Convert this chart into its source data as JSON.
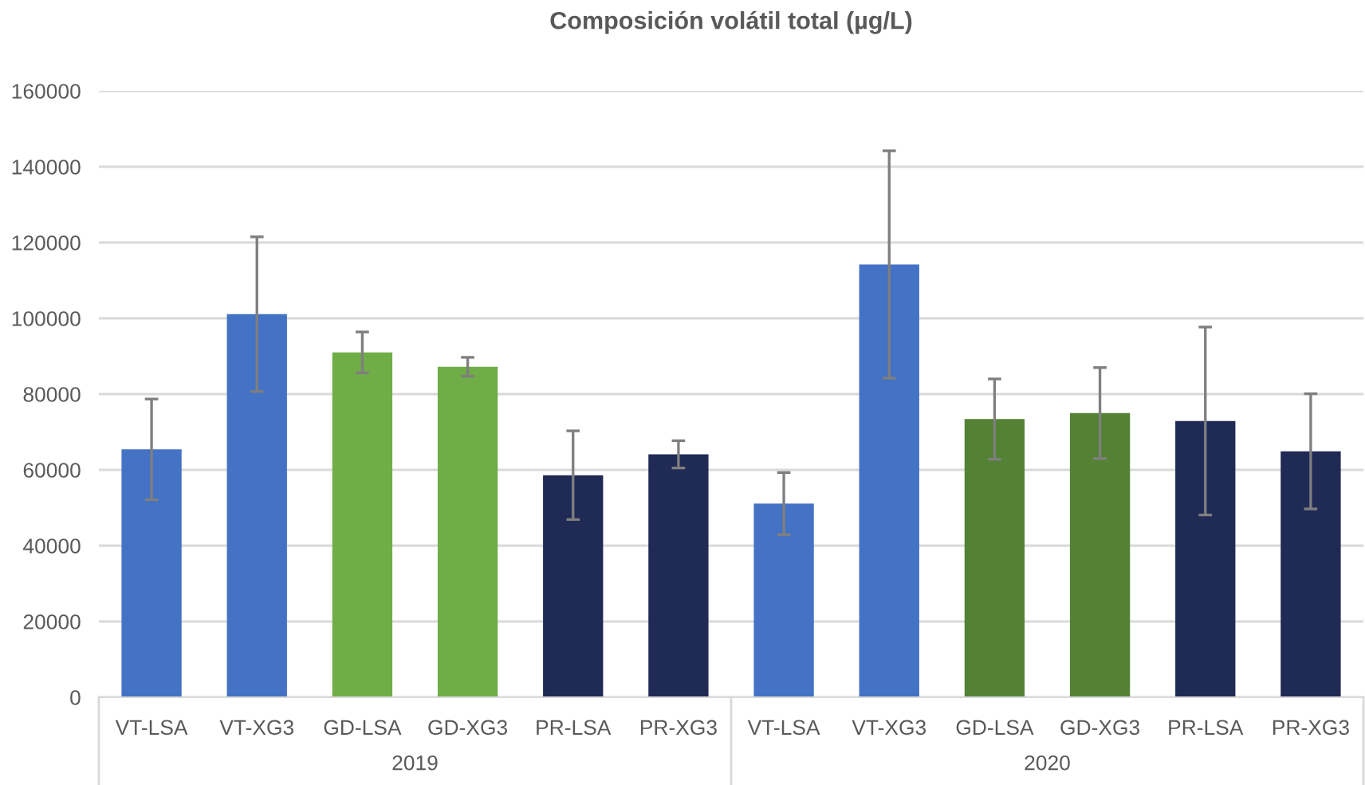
{
  "chart_data": {
    "type": "bar",
    "title": "Composición volátil total (µg/L)",
    "categories": [
      "VT-LSA",
      "VT-XG3",
      "GD-LSA",
      "GD-XG3",
      "PR-LSA",
      "PR-XG3",
      "VT-LSA",
      "VT-XG3",
      "GD-LSA",
      "GD-XG3",
      "PR-LSA",
      "PR-XG3"
    ],
    "values": [
      65400,
      101100,
      91000,
      87200,
      58600,
      64100,
      51100,
      114200,
      73400,
      75000,
      72900,
      64900
    ],
    "errors": [
      13300,
      20400,
      5400,
      2500,
      11700,
      3600,
      8200,
      30000,
      10600,
      12000,
      24800,
      15200
    ],
    "colors": [
      "#4472c4",
      "#4472c4",
      "#70ad47",
      "#70ad47",
      "#1f2a55",
      "#1f2a55",
      "#4472c4",
      "#4472c4",
      "#548235",
      "#548235",
      "#1f2a55",
      "#1f2a55"
    ],
    "ylim": [
      0,
      160000
    ],
    "yticks": [
      0,
      20000,
      40000,
      60000,
      80000,
      100000,
      120000,
      140000,
      160000
    ],
    "grid": "y",
    "annotations": [
      "2019",
      "2020"
    ]
  }
}
